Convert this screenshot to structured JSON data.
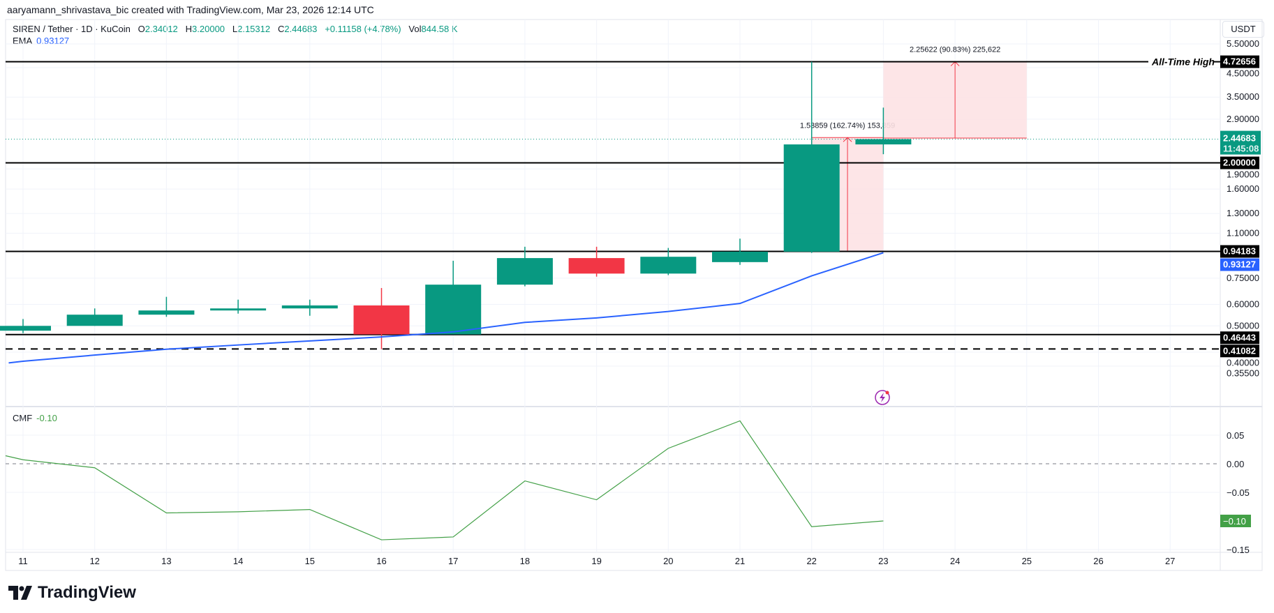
{
  "header": {
    "attribution": "aaryamann_shrivastava_bic created with TradingView.com, Mar 23, 2026 12:14 UTC"
  },
  "legend": {
    "symbol": "SIREN / Tether · 1D · KuCoin",
    "o_label": "O",
    "o": "2.34012",
    "h_label": "H",
    "h": "3.20000",
    "l_label": "L",
    "l": "2.15312",
    "c_label": "C",
    "c": "2.44683",
    "change": "+0.11158 (+4.78%)",
    "vol_label": "Vol",
    "vol": "844.58 K"
  },
  "ema": {
    "label": "EMA",
    "value": "0.93127"
  },
  "cmf": {
    "label": "CMF",
    "value": "-0.10"
  },
  "axis_unit": "USDT",
  "branding": "TradingView",
  "colors": {
    "up": "#089981",
    "down": "#f23645",
    "ema": "#2962ff",
    "cmf": "#43a047",
    "measure_fill": "#fde2e4",
    "measure_line": "#f23645"
  },
  "chart_data": [
    {
      "type": "candlestick",
      "scale": "log",
      "ylim": [
        0.355,
        5.5
      ],
      "grid": true,
      "x_ticks": [
        "11",
        "12",
        "13",
        "14",
        "15",
        "16",
        "17",
        "18",
        "19",
        "20",
        "21",
        "22",
        "23",
        "24",
        "25",
        "26",
        "27"
      ],
      "y_ticks": [
        "5.50000",
        "4.50000",
        "3.50000",
        "2.90000",
        "1.90000",
        "1.60000",
        "1.30000",
        "1.10000",
        "0.75000",
        "0.60000",
        "0.50000",
        "0.40000",
        "0.35500"
      ],
      "candles": [
        {
          "day": 11,
          "o": 0.48,
          "h": 0.53,
          "l": 0.47,
          "c": 0.5
        },
        {
          "day": 12,
          "o": 0.5,
          "h": 0.58,
          "l": 0.5,
          "c": 0.55
        },
        {
          "day": 13,
          "o": 0.55,
          "h": 0.64,
          "l": 0.54,
          "c": 0.57
        },
        {
          "day": 14,
          "o": 0.57,
          "h": 0.625,
          "l": 0.555,
          "c": 0.58
        },
        {
          "day": 15,
          "o": 0.58,
          "h": 0.625,
          "l": 0.545,
          "c": 0.595
        },
        {
          "day": 16,
          "o": 0.595,
          "h": 0.69,
          "l": 0.41,
          "c": 0.465
        },
        {
          "day": 17,
          "o": 0.465,
          "h": 0.87,
          "l": 0.465,
          "c": 0.71
        },
        {
          "day": 18,
          "o": 0.71,
          "h": 0.98,
          "l": 0.7,
          "c": 0.89
        },
        {
          "day": 19,
          "o": 0.89,
          "h": 0.98,
          "l": 0.76,
          "c": 0.78
        },
        {
          "day": 20,
          "o": 0.78,
          "h": 0.97,
          "l": 0.77,
          "c": 0.9
        },
        {
          "day": 21,
          "o": 0.86,
          "h": 1.05,
          "l": 0.84,
          "c": 0.94
        },
        {
          "day": 22,
          "o": 0.94,
          "h": 4.72656,
          "l": 0.93,
          "c": 2.34
        },
        {
          "day": 23,
          "o": 2.34012,
          "h": 3.2,
          "l": 2.15312,
          "c": 2.44683
        }
      ],
      "ema": {
        "label": "EMA",
        "days": [
          10.8,
          11,
          12,
          13,
          14,
          15,
          16,
          17,
          18,
          19,
          20,
          21,
          22,
          23
        ],
        "values": [
          0.365,
          0.37,
          0.39,
          0.41,
          0.425,
          0.44,
          0.455,
          0.475,
          0.515,
          0.535,
          0.565,
          0.605,
          0.765,
          0.93127
        ]
      },
      "levels": [
        {
          "price": 4.72656,
          "label": "4.72656",
          "style": "solid",
          "annotation": "All-Time High"
        },
        {
          "price": 2.0,
          "label": "2.00000",
          "style": "solid"
        },
        {
          "price": 0.94183,
          "label": "0.94183",
          "style": "solid"
        },
        {
          "price": 0.46443,
          "label": "0.46443",
          "style": "solid"
        },
        {
          "price": 0.41082,
          "label": "0.41082",
          "style": "dashed"
        }
      ],
      "last_price": {
        "value": "2.44683",
        "countdown": "11:45:08"
      },
      "ema_price_label": "0.93127",
      "measures": [
        {
          "from_day": 22,
          "to_day": 23,
          "low": 0.94183,
          "high": 2.48042,
          "arrow_day": 22.5,
          "label": "1.53859 (162.74%) 153,859"
        },
        {
          "from_day": 23,
          "to_day": 25,
          "low": 2.47034,
          "high": 4.72656,
          "arrow_day": 24,
          "label": "2.25622 (90.83%) 225,622"
        }
      ]
    },
    {
      "type": "line",
      "title": "CMF",
      "ylim": [
        -0.15,
        0.05
      ],
      "y_ticks": [
        "0.05",
        "0.00",
        "−0.05",
        "−0.15"
      ],
      "zero_line": "dashed",
      "days": [
        10.75,
        11,
        12,
        13,
        14,
        15,
        16,
        17,
        18,
        19,
        20,
        21,
        22,
        23
      ],
      "values": [
        0.014,
        0.007,
        -0.007,
        -0.086,
        -0.084,
        -0.08,
        -0.133,
        -0.128,
        -0.03,
        -0.063,
        0.027,
        0.075,
        -0.11,
        -0.1
      ],
      "last_label": "−0.10"
    }
  ]
}
